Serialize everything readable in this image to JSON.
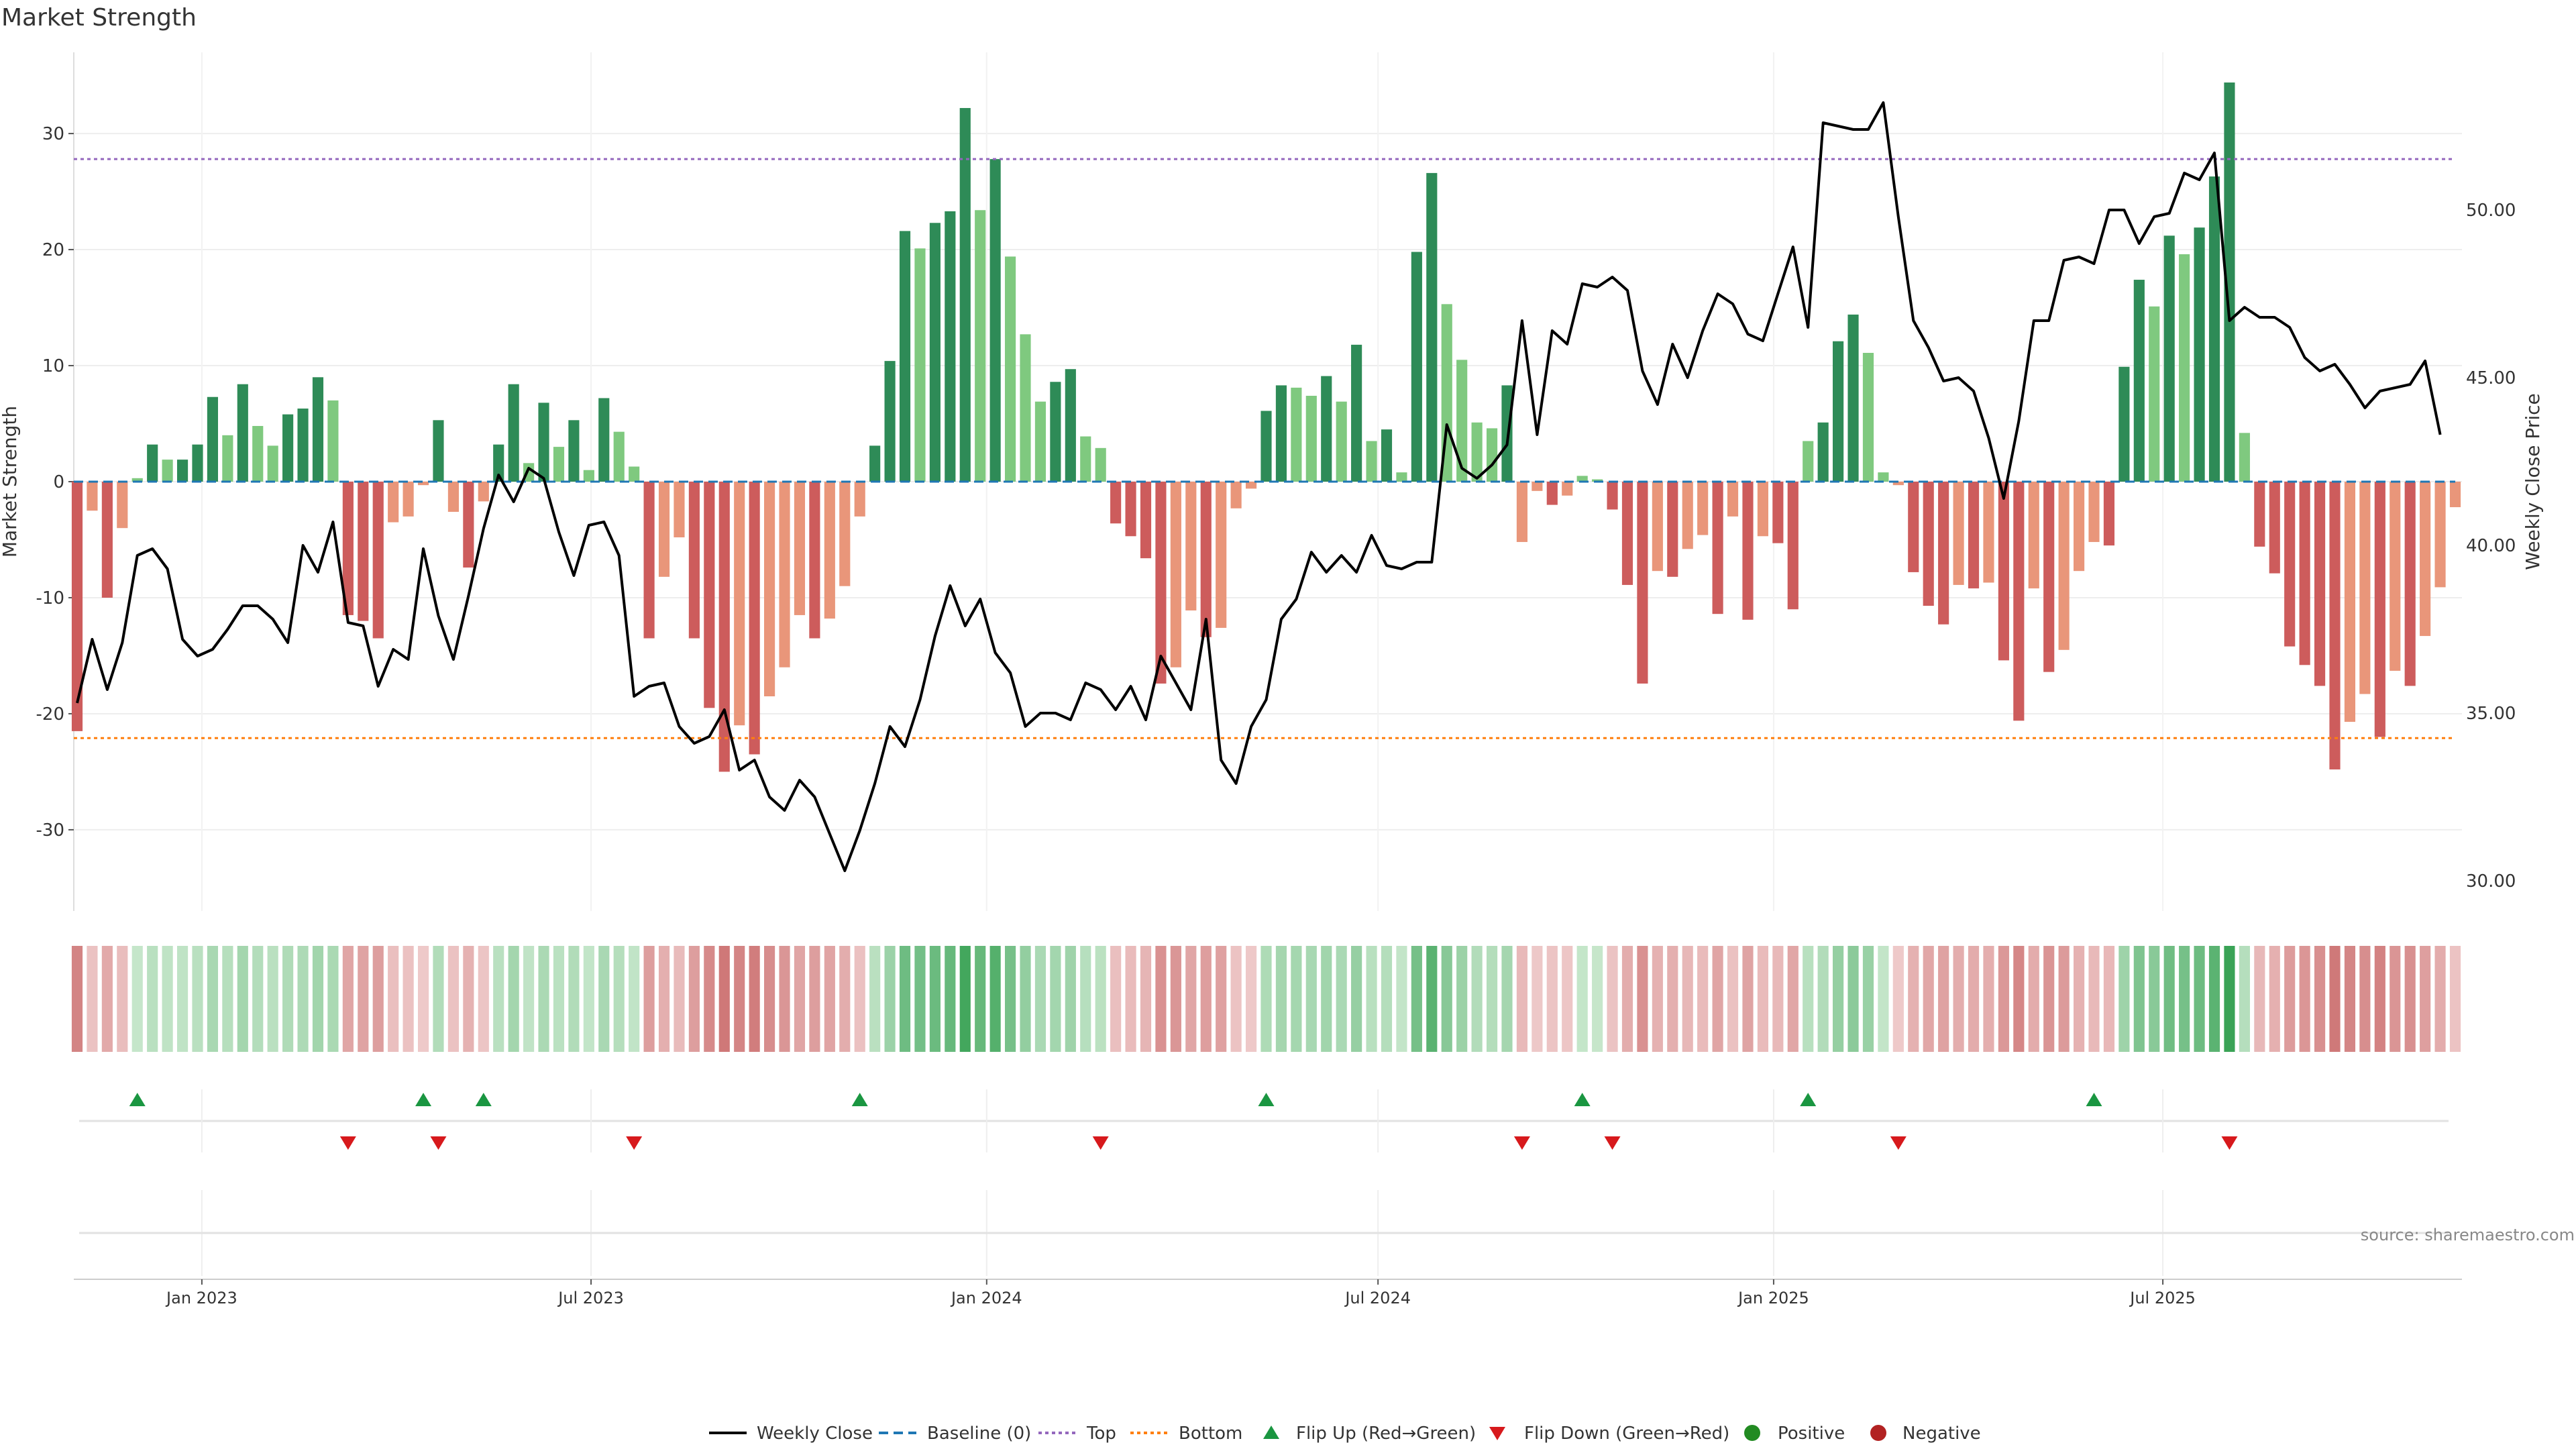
{
  "chart_data": {
    "type": "bar+line",
    "title": "Market Strength",
    "ylabel_left": "Market Strength",
    "ylabel_right": "Weekly Close Price",
    "x_start": "2022-11-04",
    "x_step_days": 7,
    "x_ticks": [
      {
        "date": "2023-01-01",
        "label": "Jan 2023"
      },
      {
        "date": "2023-07-01",
        "label": "Jul 2023"
      },
      {
        "date": "2024-01-01",
        "label": "Jan 2024"
      },
      {
        "date": "2024-07-01",
        "label": "Jul 2024"
      },
      {
        "date": "2025-01-01",
        "label": "Jan 2025"
      },
      {
        "date": "2025-07-01",
        "label": "Jul 2025"
      }
    ],
    "y_left_ticks": [
      -30,
      -20,
      -10,
      0,
      10,
      20,
      30
    ],
    "y_left_range": [
      -37,
      37
    ],
    "y_right_ticks": [
      "30.00",
      "35.00",
      "40.00",
      "45.00",
      "50.00"
    ],
    "y_right_range": [
      29.1,
      54.7
    ],
    "top_level": 27.8,
    "bottom_level": -22.1,
    "strength": [
      -21.5,
      -2.5,
      -10,
      -4,
      0.3,
      3.2,
      1.9,
      1.9,
      3.2,
      7.3,
      4,
      8.4,
      4.8,
      3.1,
      5.8,
      6.3,
      9,
      7,
      -11.5,
      -12,
      -13.5,
      -3.5,
      -3,
      -0.3,
      5.3,
      -2.6,
      -7.4,
      -1.7,
      3.2,
      8.4,
      1.6,
      6.8,
      3,
      5.3,
      1,
      7.2,
      4.3,
      1.3,
      -13.5,
      -8.2,
      -4.8,
      -13.5,
      -19.5,
      -25,
      -21,
      -23.5,
      -18.5,
      -16,
      -11.5,
      -13.5,
      -11.8,
      -9,
      -3,
      3.1,
      10.4,
      21.6,
      20.1,
      22.3,
      23.3,
      32.2,
      23.4,
      27.8,
      19.4,
      12.7,
      6.9,
      8.6,
      9.7,
      3.9,
      2.9,
      -3.6,
      -4.7,
      -6.6,
      -17.4,
      -16,
      -11.1,
      -13.4,
      -12.6,
      -2.3,
      -0.6,
      6.1,
      8.3,
      8.1,
      7.4,
      9.1,
      6.9,
      11.8,
      3.5,
      4.5,
      0.8,
      19.8,
      26.6,
      15.3,
      10.5,
      5.1,
      4.6,
      8.3,
      -5.2,
      -0.8,
      -2,
      -1.2,
      0.5,
      0.2,
      -2.4,
      -8.9,
      -17.4,
      -7.7,
      -8.2,
      -5.8,
      -4.6,
      -11.4,
      -3,
      -11.9,
      -4.7,
      -5.3,
      -11,
      3.5,
      5.1,
      12.1,
      14.4,
      11.1,
      0.8,
      -0.3,
      -7.8,
      -10.7,
      -12.3,
      -8.9,
      -9.2,
      -8.7,
      -15.4,
      -20.6,
      -9.2,
      -16.4,
      -14.5,
      -7.7,
      -5.2,
      -5.5,
      9.9,
      17.4,
      15.1,
      21.2,
      19.6,
      21.9,
      26.3,
      34.4,
      4.2,
      -5.6,
      -7.9,
      -14.2,
      -15.8,
      -17.6,
      -24.8,
      -20.7,
      -18.3,
      -22,
      -16.3,
      -17.6,
      -13.3,
      -9.1,
      -2.2
    ],
    "weekly_close": [
      35.3,
      37.2,
      35.7,
      37.1,
      39.7,
      39.9,
      39.3,
      37.2,
      36.7,
      36.9,
      37.5,
      38.2,
      38.2,
      37.8,
      37.1,
      40,
      39.2,
      40.7,
      37.7,
      37.6,
      35.8,
      36.9,
      36.6,
      39.9,
      37.9,
      36.6,
      38.5,
      40.5,
      42.1,
      41.3,
      42.3,
      42.0,
      40.4,
      39.1,
      40.6,
      40.7,
      39.7,
      35.5,
      35.8,
      35.9,
      34.6,
      34.1,
      34.3,
      35.1,
      33.3,
      33.6,
      32.5,
      32.1,
      33,
      32.5,
      31.4,
      30.3,
      31.5,
      32.9,
      34.6,
      34,
      35.4,
      37.3,
      38.8,
      37.6,
      38.4,
      36.8,
      36.2,
      34.6,
      35,
      35,
      34.8,
      35.9,
      35.7,
      35.1,
      35.8,
      34.8,
      36.7,
      35.9,
      35.1,
      37.8,
      33.6,
      32.9,
      34.6,
      35.4,
      37.8,
      38.4,
      39.8,
      39.2,
      39.7,
      39.2,
      40.3,
      39.4,
      39.3,
      39.5,
      39.5,
      43.6,
      42.3,
      42.0,
      42.4,
      43.0,
      46.7,
      43.3,
      46.4,
      46,
      47.8,
      47.7,
      48.0,
      47.6,
      45.2,
      44.2,
      46.0,
      45,
      46.4,
      47.5,
      47.2,
      46.3,
      46.1,
      47.5,
      48.9,
      46.5,
      52.6,
      52.5,
      52.4,
      52.4,
      53.2,
      49.8,
      46.7,
      45.9,
      44.9,
      45.0,
      44.6,
      43.2,
      41.4,
      43.7,
      46.7,
      46.7,
      48.5,
      48.6,
      48.4,
      50.0,
      50.0,
      49.0,
      49.8,
      49.9,
      51.1,
      50.9,
      51.7,
      46.7,
      47.1,
      46.8,
      46.8,
      46.5,
      45.6,
      45.2,
      45.4,
      44.8,
      44.1,
      44.6,
      44.7,
      44.8,
      45.5,
      43.3
    ],
    "flip_up_indices": [
      4,
      23,
      27,
      52,
      79,
      100,
      115,
      134
    ],
    "flip_down_indices": [
      18,
      24,
      37,
      68,
      96,
      102,
      121,
      143
    ],
    "legend": [
      "Weekly Close",
      "Baseline (0)",
      "Top",
      "Bottom",
      "Flip Up (Red→Green)",
      "Flip Down (Green→Red)",
      "Positive",
      "Negative"
    ],
    "colors": {
      "pos_strong": "#2e8b57",
      "pos_light": "#7fc97f",
      "neg_strong": "#cd5c5c",
      "neg_light": "#e9967a",
      "line": "#000000",
      "baseline": "#1f77b4",
      "top": "#9467bd",
      "bottom": "#ff7f0e",
      "flip_up": "#1a9641",
      "flip_down": "#d7191c",
      "positive_dot": "#228b22",
      "negative_dot": "#b22222"
    }
  },
  "source_note": "source: sharemaestro.com"
}
